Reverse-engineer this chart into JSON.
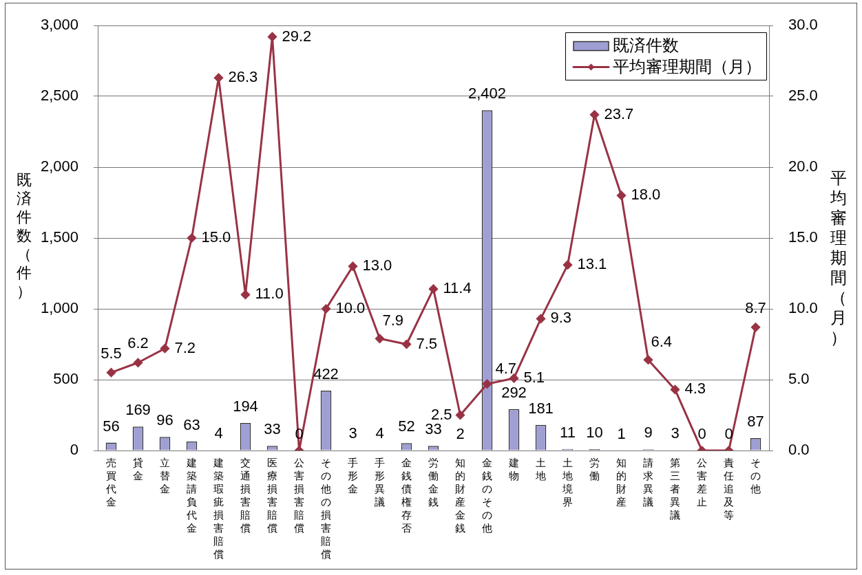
{
  "chart_data": {
    "type": "bar",
    "categories": [
      "売買代金",
      "貸金",
      "立替金",
      "建築請負代金",
      "建築瑕疵損害賠償",
      "交通損害賠償",
      "医療損害賠償",
      "公害損害賠償",
      "その他の損害賠償",
      "手形金",
      "手形異議",
      "金銭債権存否",
      "労働金銭",
      "知的財産金銭",
      "金銭のその他",
      "建物",
      "土地",
      "土地境界",
      "労働",
      "知的財産",
      "請求異議",
      "第三者異議",
      "公害差止",
      "責任追及等",
      "その他"
    ],
    "ylabel": "既済件数（件）",
    "y2label": "平均審理期間（月）",
    "series": [
      {
        "name": "既済件数",
        "color": "#9f9fd4",
        "values": [
          56,
          169,
          96,
          63,
          4,
          194,
          33,
          0,
          422,
          3,
          4,
          52,
          33,
          2,
          2402,
          292,
          181,
          11,
          10,
          1,
          9,
          3,
          0,
          0,
          87
        ],
        "value_labels": [
          "56",
          "169",
          "96",
          "63",
          "4",
          "194",
          "33",
          "0",
          "422",
          "3",
          "4",
          "52",
          "33",
          "2",
          "2,402",
          "292",
          "181",
          "11",
          "10",
          "1",
          "9",
          "3",
          "0",
          "0",
          "87"
        ]
      },
      {
        "name": "平均審理期間（月）",
        "type": "line",
        "axis": "y2",
        "color": "#993344",
        "values": [
          5.5,
          6.2,
          7.2,
          15.0,
          26.3,
          11.0,
          29.2,
          0,
          10.0,
          13.0,
          7.9,
          7.5,
          11.4,
          2.5,
          4.7,
          5.1,
          9.3,
          13.1,
          23.7,
          18.0,
          6.4,
          4.3,
          0,
          0,
          8.7
        ],
        "value_labels": [
          "5.5",
          "6.2",
          "7.2",
          "15.0",
          "26.3",
          "11.0",
          "29.2",
          null,
          "10.0",
          "13.0",
          "7.9",
          "7.5",
          "11.4",
          "2.5",
          "4.7",
          "5.1",
          "9.3",
          "13.1",
          "23.7",
          "18.0",
          "6.4",
          "4.3",
          null,
          null,
          "8.7"
        ]
      }
    ],
    "ylim": [
      0,
      3000
    ],
    "yticks": [
      0,
      500,
      {
        "value": 1000,
        "label": "1,000"
      },
      {
        "value": 1500,
        "label": "1,500"
      },
      {
        "value": 2000,
        "label": "2,000"
      },
      {
        "value": 2500,
        "label": "2,500"
      },
      {
        "value": 3000,
        "label": "3,000"
      }
    ],
    "y2lim": [
      0,
      30
    ],
    "y2ticks": [
      {
        "value": 0,
        "label": "0.0"
      },
      {
        "value": 5,
        "label": "5.0"
      },
      {
        "value": 10,
        "label": "10.0"
      },
      {
        "value": 15,
        "label": "15.0"
      },
      {
        "value": 20,
        "label": "20.0"
      },
      {
        "value": 25,
        "label": "25.0"
      },
      {
        "value": 30,
        "label": "30.0"
      }
    ],
    "grid": "y",
    "legend": "top right",
    "marker": "diamond",
    "line_style": "solid"
  }
}
